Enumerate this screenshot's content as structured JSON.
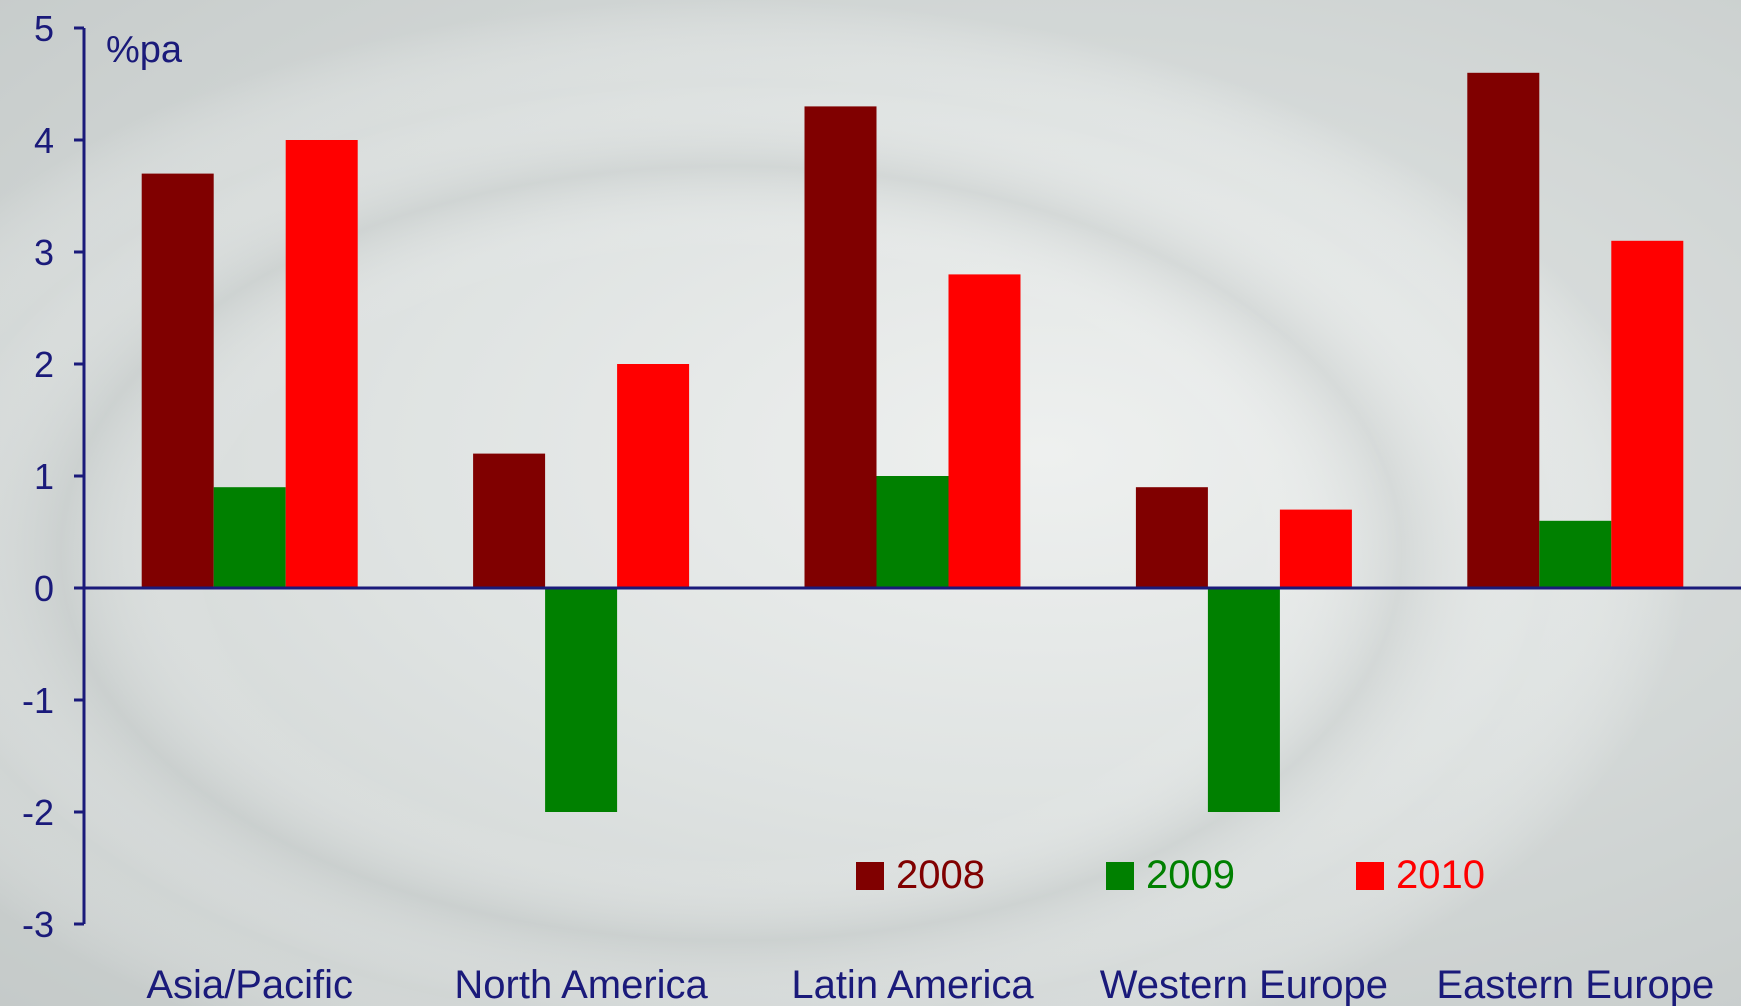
{
  "chart_data": {
    "type": "bar",
    "ylabel": "%pa",
    "ylim": [
      -3,
      5
    ],
    "yticks": [
      5,
      4,
      3,
      2,
      1,
      0,
      -1,
      -2,
      -3
    ],
    "categories": [
      "Asia/Pacific",
      "North America",
      "Latin America",
      "Western Europe",
      "Eastern Europe"
    ],
    "series": [
      {
        "name": "2008",
        "color": "#800000",
        "values": [
          3.7,
          1.2,
          4.3,
          0.9,
          4.6
        ]
      },
      {
        "name": "2009",
        "color": "#008000",
        "values": [
          0.9,
          -2.0,
          1.0,
          -2.0,
          0.6
        ]
      },
      {
        "name": "2010",
        "color": "#ff0000",
        "values": [
          4.0,
          2.0,
          2.8,
          0.7,
          3.1
        ]
      }
    ],
    "legend_position": "bottom-right",
    "grid": false
  }
}
